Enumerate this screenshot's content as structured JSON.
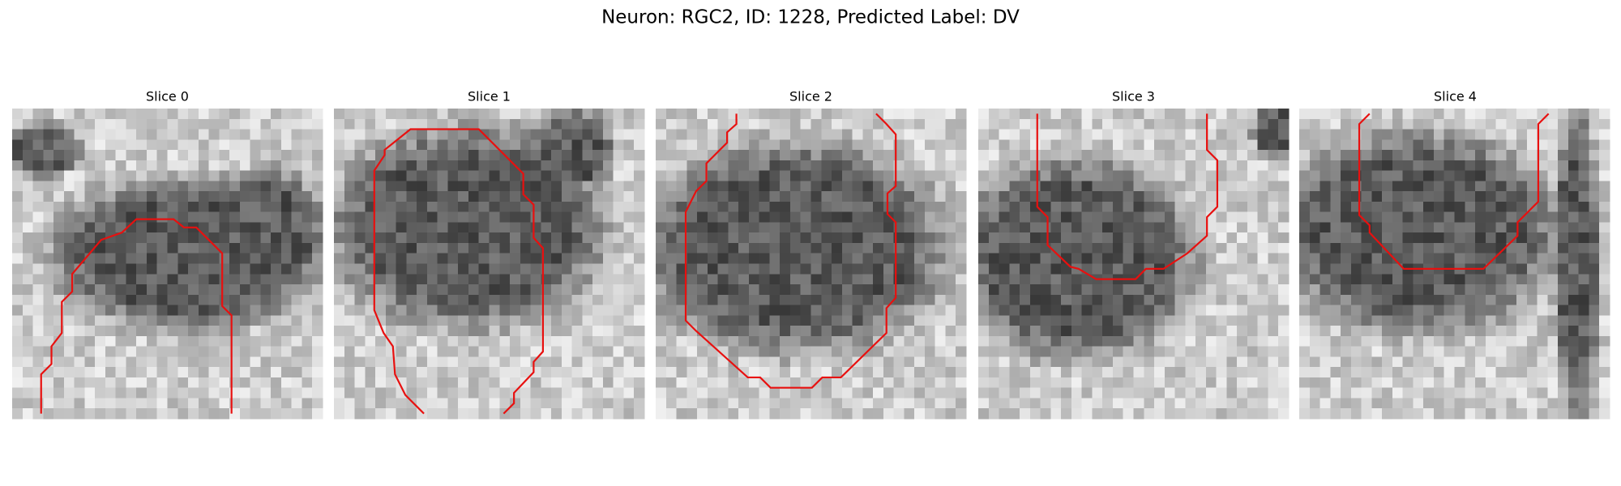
{
  "title": "Neuron: RGC2, ID: 1228, Predicted Label: DV",
  "panels": [
    {
      "title": "Slice 0"
    },
    {
      "title": "Slice 1"
    },
    {
      "title": "Slice 2"
    },
    {
      "title": "Slice 3"
    },
    {
      "title": "Slice 4"
    }
  ]
}
